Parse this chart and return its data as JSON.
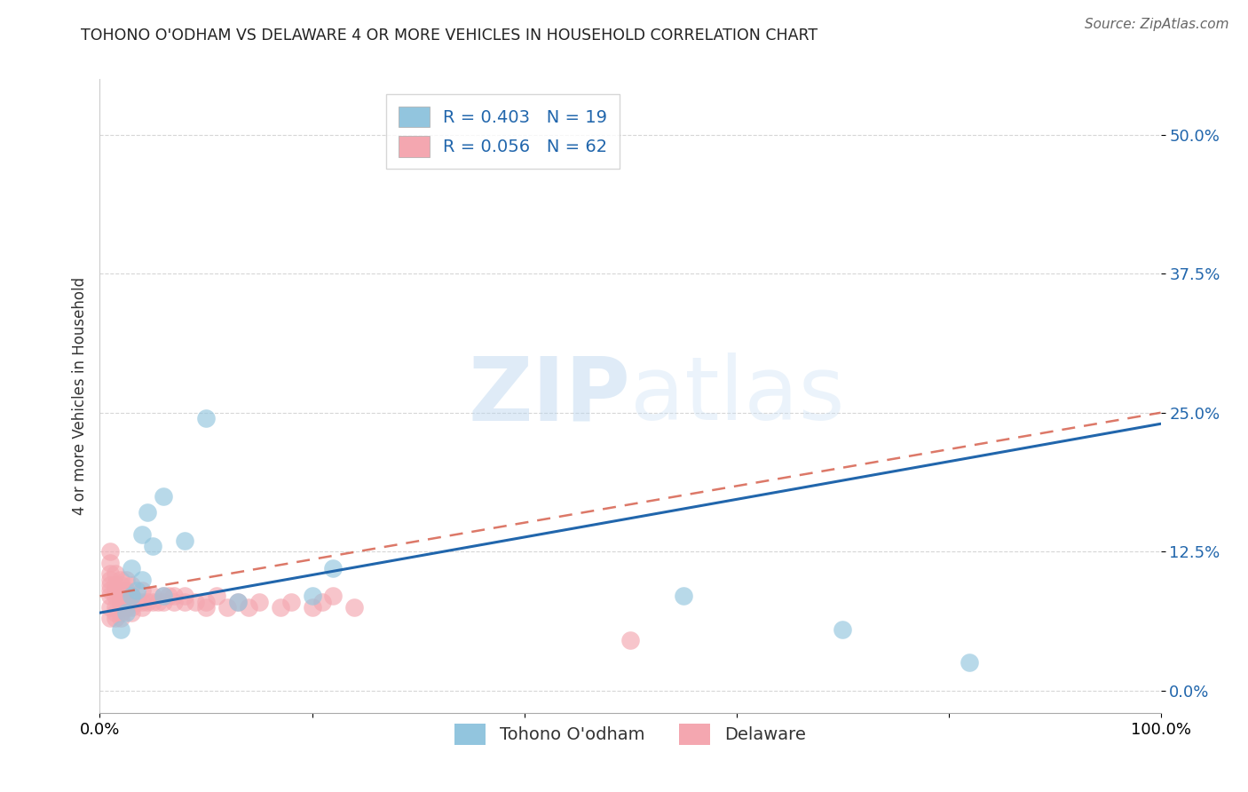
{
  "title": "TOHONO O'ODHAM VS DELAWARE 4 OR MORE VEHICLES IN HOUSEHOLD CORRELATION CHART",
  "source": "Source: ZipAtlas.com",
  "ylabel": "4 or more Vehicles in Household",
  "blue_color": "#92c5de",
  "pink_color": "#f4a7b0",
  "blue_line_color": "#2166ac",
  "pink_line_color": "#d6604d",
  "watermark_color": "#ddeeff",
  "background_color": "#ffffff",
  "grid_color": "#cccccc",
  "legend_R1": "R = 0.403",
  "legend_N1": "N = 19",
  "legend_R2": "R = 0.056",
  "legend_N2": "N = 62",
  "tohono_label": "Tohono O'odham",
  "delaware_label": "Delaware",
  "xlim": [
    0.0,
    1.0
  ],
  "ylim": [
    -0.02,
    0.55
  ],
  "tohono_x": [
    0.02,
    0.025,
    0.03,
    0.03,
    0.035,
    0.04,
    0.04,
    0.045,
    0.05,
    0.06,
    0.06,
    0.08,
    0.1,
    0.13,
    0.2,
    0.22,
    0.55,
    0.7,
    0.82
  ],
  "tohono_y": [
    0.055,
    0.07,
    0.085,
    0.11,
    0.09,
    0.1,
    0.14,
    0.16,
    0.13,
    0.085,
    0.175,
    0.135,
    0.245,
    0.08,
    0.085,
    0.11,
    0.085,
    0.055,
    0.025
  ],
  "delaware_x": [
    0.01,
    0.01,
    0.01,
    0.01,
    0.01,
    0.01,
    0.01,
    0.01,
    0.01,
    0.015,
    0.015,
    0.015,
    0.015,
    0.015,
    0.015,
    0.015,
    0.02,
    0.02,
    0.02,
    0.02,
    0.02,
    0.02,
    0.02,
    0.02,
    0.025,
    0.025,
    0.025,
    0.025,
    0.03,
    0.03,
    0.03,
    0.03,
    0.035,
    0.04,
    0.04,
    0.04,
    0.045,
    0.05,
    0.05,
    0.055,
    0.06,
    0.06,
    0.065,
    0.07,
    0.07,
    0.08,
    0.08,
    0.09,
    0.1,
    0.1,
    0.11,
    0.12,
    0.13,
    0.14,
    0.15,
    0.17,
    0.18,
    0.2,
    0.21,
    0.22,
    0.24,
    0.5
  ],
  "delaware_y": [
    0.065,
    0.075,
    0.085,
    0.09,
    0.095,
    0.1,
    0.105,
    0.115,
    0.125,
    0.065,
    0.07,
    0.075,
    0.085,
    0.09,
    0.095,
    0.105,
    0.065,
    0.07,
    0.075,
    0.08,
    0.085,
    0.09,
    0.095,
    0.1,
    0.075,
    0.08,
    0.09,
    0.1,
    0.07,
    0.075,
    0.085,
    0.095,
    0.08,
    0.075,
    0.08,
    0.09,
    0.08,
    0.08,
    0.085,
    0.08,
    0.08,
    0.085,
    0.085,
    0.08,
    0.085,
    0.08,
    0.085,
    0.08,
    0.075,
    0.08,
    0.085,
    0.075,
    0.08,
    0.075,
    0.08,
    0.075,
    0.08,
    0.075,
    0.08,
    0.085,
    0.075,
    0.045
  ],
  "blue_trendline_x": [
    0.0,
    1.0
  ],
  "blue_trendline_y": [
    0.07,
    0.24
  ],
  "pink_trendline_x": [
    0.0,
    1.0
  ],
  "pink_trendline_y": [
    0.085,
    0.25
  ]
}
